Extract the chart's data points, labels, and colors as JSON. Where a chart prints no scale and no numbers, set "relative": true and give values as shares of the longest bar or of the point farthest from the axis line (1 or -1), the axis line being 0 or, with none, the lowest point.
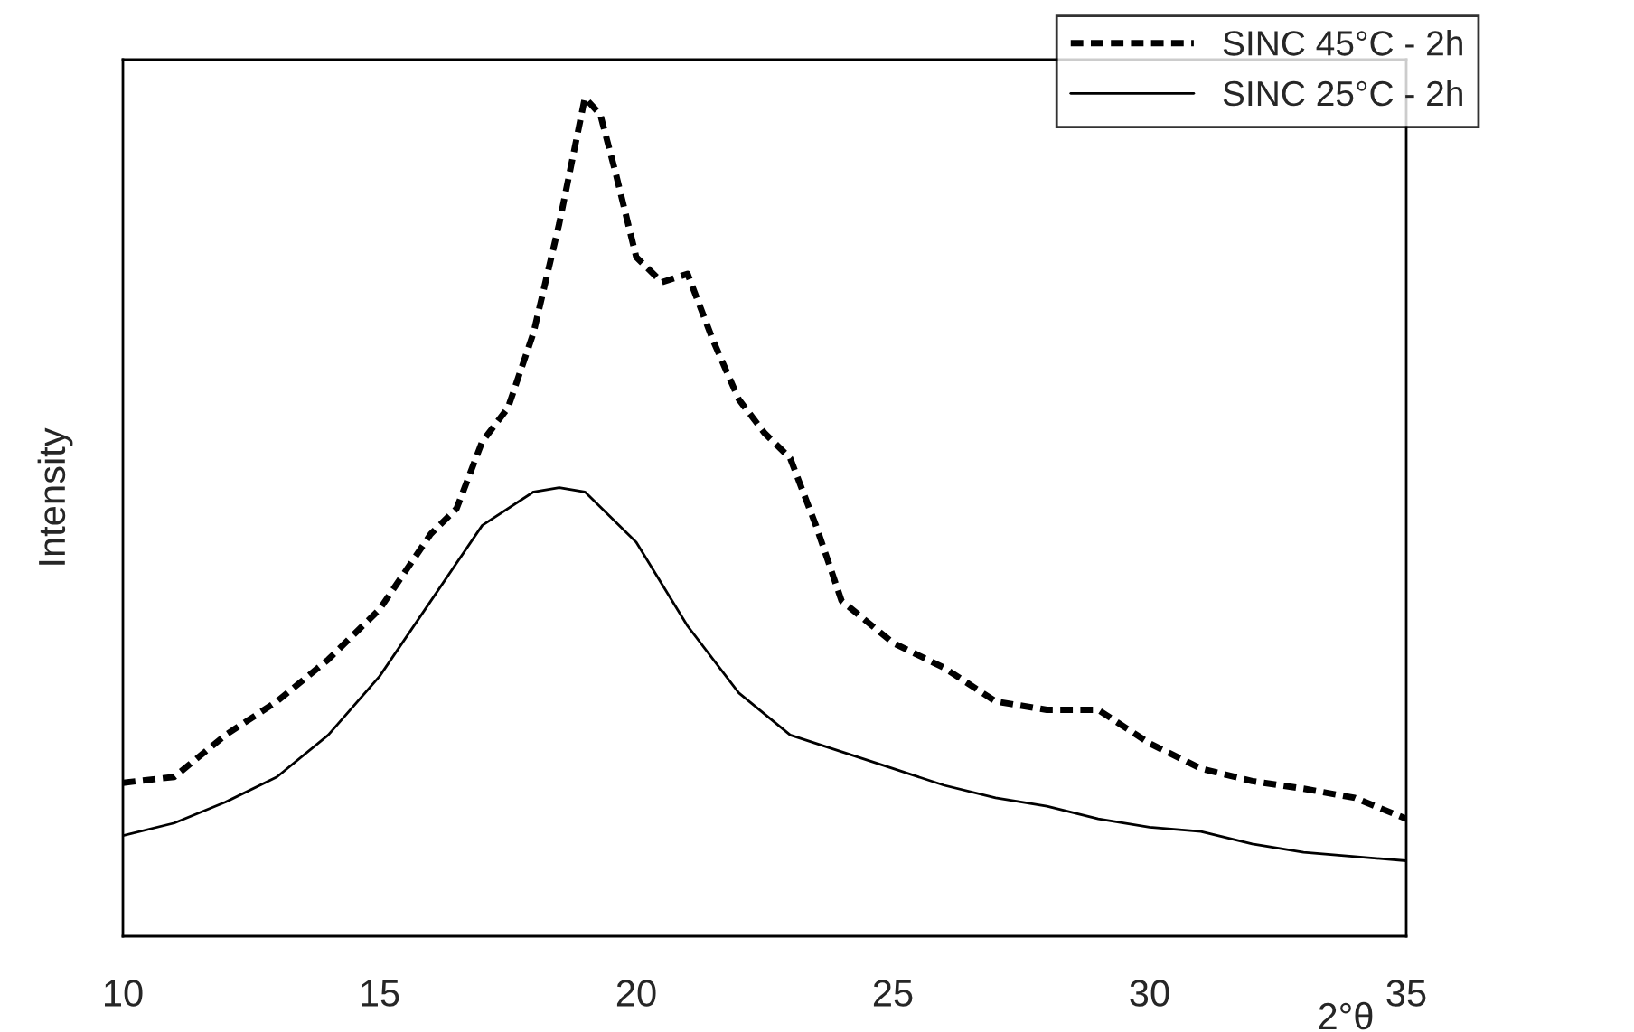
{
  "chart_data": {
    "type": "line",
    "xlabel": "2°θ",
    "ylabel": "Intensity",
    "relative": true,
    "xlim": [
      10,
      35
    ],
    "xticks": [
      10,
      15,
      20,
      25,
      30,
      35
    ],
    "grid": false,
    "legend": "top right",
    "series": [
      {
        "name": "SINC 45°C - 2h",
        "color": "#000000",
        "line_style": "dashed",
        "x": [
          10,
          11,
          12,
          13,
          14,
          15,
          16,
          16.5,
          17,
          17.5,
          18,
          18.5,
          19,
          19.3,
          19.6,
          20,
          20.5,
          21,
          21.5,
          22,
          22.5,
          23,
          23.5,
          24,
          25,
          26,
          27,
          28,
          29,
          30,
          31,
          32,
          33,
          34,
          35
        ],
        "values": [
          0.183,
          0.19,
          0.24,
          0.28,
          0.33,
          0.39,
          0.48,
          0.51,
          0.59,
          0.63,
          0.72,
          0.85,
          1.0,
          0.98,
          0.91,
          0.81,
          0.78,
          0.79,
          0.71,
          0.64,
          0.6,
          0.57,
          0.49,
          0.4,
          0.35,
          0.32,
          0.28,
          0.27,
          0.27,
          0.23,
          0.2,
          0.185,
          0.176,
          0.165,
          0.14
        ]
      },
      {
        "name": "SINC 25°C - 2h",
        "color": "#000000",
        "line_style": "solid",
        "x": [
          10,
          11,
          12,
          13,
          14,
          15,
          16,
          17,
          18,
          18.5,
          19,
          20,
          21,
          22,
          23,
          24,
          25,
          26,
          27,
          28,
          29,
          30,
          31,
          32,
          33,
          34,
          35
        ],
        "values": [
          0.12,
          0.135,
          0.16,
          0.19,
          0.24,
          0.31,
          0.4,
          0.49,
          0.53,
          0.535,
          0.53,
          0.47,
          0.37,
          0.29,
          0.24,
          0.22,
          0.2,
          0.18,
          0.165,
          0.155,
          0.14,
          0.13,
          0.125,
          0.11,
          0.1,
          0.095,
          0.09
        ]
      }
    ]
  }
}
